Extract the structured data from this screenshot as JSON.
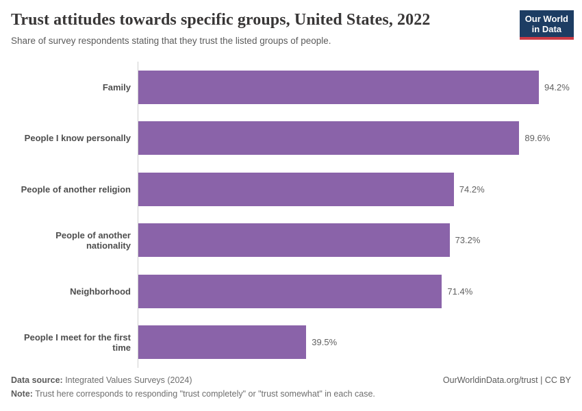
{
  "header": {
    "title": "Trust attitudes towards specific groups, United States, 2022",
    "subtitle": "Share of survey respondents stating that they trust the listed groups of people.",
    "logo": {
      "line1": "Our World",
      "line2": "in Data"
    }
  },
  "chart_data": {
    "type": "bar",
    "orientation": "horizontal",
    "title": "Trust attitudes towards specific groups, United States, 2022",
    "subtitle": "Share of survey respondents stating that they trust the listed groups of people.",
    "categories": [
      "Family",
      "People I know personally",
      "People of another religion",
      "People of another nationality",
      "Neighborhood",
      "People I meet for the first time"
    ],
    "values": [
      94.2,
      89.6,
      74.2,
      73.2,
      71.4,
      39.5
    ],
    "value_labels": [
      "94.2%",
      "89.6%",
      "74.2%",
      "73.2%",
      "71.4%",
      "39.5%"
    ],
    "xlabel": "",
    "ylabel": "",
    "xlim": [
      0,
      100
    ],
    "grid": false,
    "legend": false
  },
  "footer": {
    "datasource_label": "Data source:",
    "datasource_text": " Integrated Values Surveys (2024)",
    "note_label": "Note:",
    "note_text": " Trust here corresponds to responding \"trust completely\" or \"trust somewhat\" in each case.",
    "attribution": "OurWorldinData.org/trust | CC BY"
  },
  "colors": {
    "bar": "#8a63a9",
    "logo_bg": "#1d3d63",
    "logo_accent": "#cc3b45",
    "axis": "#cfcfcf"
  }
}
